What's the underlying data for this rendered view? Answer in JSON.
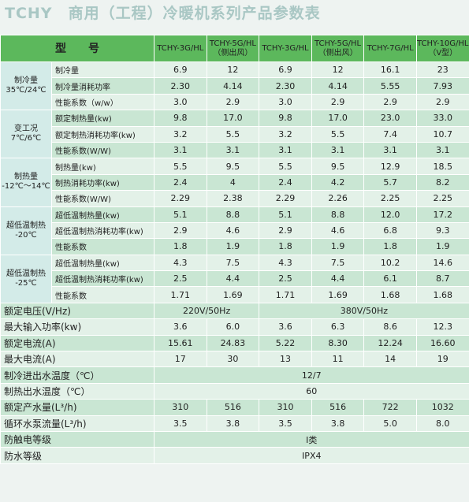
{
  "title": "TCHY　商用（工程）冷暖机系列产品参数表",
  "header": {
    "label": "型　　号",
    "models": [
      "TCHY-3G/HL",
      "TCHY-5G/HL\n（侧出风）",
      "TCHY-3G/HL",
      "TCHY-5G/HL\n（侧出风）",
      "TCHY-7G/HL",
      "TCHY-10G/HL\n（V型）"
    ]
  },
  "groups": [
    {
      "label": "制冷量\n35℃/24℃",
      "rows": [
        {
          "label": "制冷量",
          "values": [
            "6.9",
            "12",
            "6.9",
            "12",
            "16.1",
            "23"
          ]
        },
        {
          "label": "制冷量消耗功率",
          "values": [
            "2.30",
            "4.14",
            "2.30",
            "4.14",
            "5.55",
            "7.93"
          ]
        },
        {
          "label": "性能系数（w/w）",
          "values": [
            "3.0",
            "2.9",
            "3.0",
            "2.9",
            "2.9",
            "2.9"
          ]
        }
      ]
    },
    {
      "label": "变工况\n7℃/6℃",
      "rows": [
        {
          "label": "额定制热量(kw)",
          "values": [
            "9.8",
            "17.0",
            "9.8",
            "17.0",
            "23.0",
            "33.0"
          ]
        },
        {
          "label": "额定制热消耗功率(kw)",
          "values": [
            "3.2",
            "5.5",
            "3.2",
            "5.5",
            "7.4",
            "10.7"
          ]
        },
        {
          "label": "性能系数(W/W)",
          "values": [
            "3.1",
            "3.1",
            "3.1",
            "3.1",
            "3.1",
            "3.1"
          ]
        }
      ]
    },
    {
      "label": "制热量\n-12℃～14℃",
      "rows": [
        {
          "label": "制热量(kw)",
          "values": [
            "5.5",
            "9.5",
            "5.5",
            "9.5",
            "12.9",
            "18.5"
          ]
        },
        {
          "label": "制热消耗功率(kw)",
          "values": [
            "2.4",
            "4",
            "2.4",
            "4.2",
            "5.7",
            "8.2"
          ]
        },
        {
          "label": "性能系数(W/W)",
          "values": [
            "2.29",
            "2.38",
            "2.29",
            "2.26",
            "2.25",
            "2.25"
          ]
        }
      ]
    },
    {
      "label": "超低温制热\n-20℃",
      "rows": [
        {
          "label": "超低温制热量(kw)",
          "values": [
            "5.1",
            "8.8",
            "5.1",
            "8.8",
            "12.0",
            "17.2"
          ]
        },
        {
          "label": "超低温制热消耗功率(kw)",
          "values": [
            "2.9",
            "4.6",
            "2.9",
            "4.6",
            "6.8",
            "9.3"
          ]
        },
        {
          "label": "性能系数",
          "values": [
            "1.8",
            "1.9",
            "1.8",
            "1.9",
            "1.8",
            "1.9"
          ]
        }
      ]
    },
    {
      "label": "超低温制热\n-25℃",
      "rows": [
        {
          "label": "超低温制热量(kw)",
          "values": [
            "4.3",
            "7.5",
            "4.3",
            "7.5",
            "10.2",
            "14.6"
          ]
        },
        {
          "label": "超低温制热消耗功率(kw)",
          "values": [
            "2.5",
            "4.4",
            "2.5",
            "4.4",
            "6.1",
            "8.7"
          ]
        },
        {
          "label": "性能系数",
          "values": [
            "1.71",
            "1.69",
            "1.71",
            "1.69",
            "1.68",
            "1.68"
          ]
        }
      ]
    }
  ],
  "specs": [
    {
      "label": "额定电压(V/Hz)",
      "values": [
        "220V/50Hz",
        "380V/50Hz"
      ]
    },
    {
      "label": "最大输入功率(kw)",
      "values": [
        "3.6",
        "6.0",
        "3.6",
        "6.3",
        "8.6",
        "12.3"
      ]
    },
    {
      "label": "额定电流(A)",
      "values": [
        "15.61",
        "24.83",
        "5.22",
        "8.30",
        "12.24",
        "16.60"
      ]
    },
    {
      "label": "最大电流(A)",
      "values": [
        "17",
        "30",
        "13",
        "11",
        "14",
        "19"
      ]
    },
    {
      "label": "制冷进出水温度（℃）",
      "values": [
        "12/7"
      ]
    },
    {
      "label": "制热出水温度（℃）",
      "values": [
        "60"
      ]
    },
    {
      "label": "额定产水量(L³/h)",
      "values": [
        "310",
        "516",
        "310",
        "516",
        "722",
        "1032"
      ]
    },
    {
      "label": "循环水泵流量(L³/h)",
      "values": [
        "3.5",
        "3.8",
        "3.5",
        "3.8",
        "5.0",
        "8.0"
      ]
    },
    {
      "label": "防触电等级",
      "values": [
        "I类"
      ]
    },
    {
      "label": "防水等级",
      "values": [
        "IPX4"
      ]
    }
  ]
}
